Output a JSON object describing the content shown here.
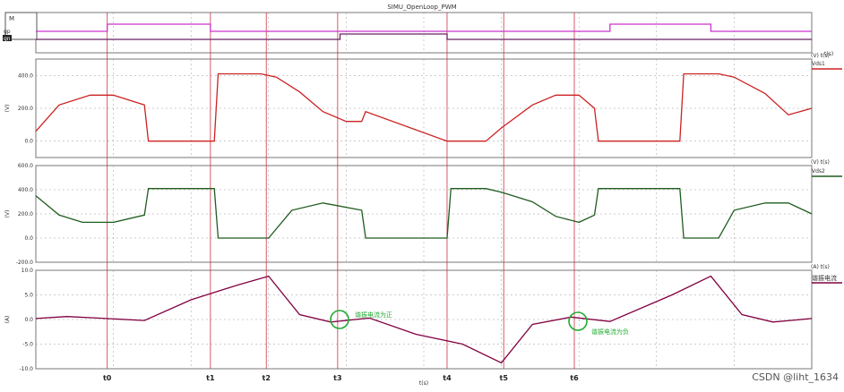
{
  "title": "SIMU_OpenLoop_PWM",
  "watermark": "CSDN @liht_1634",
  "marker_labels": [
    "t0",
    "t1",
    "t2",
    "t3",
    "t4",
    "t5",
    "t6"
  ],
  "x_axis_label": "t(s)",
  "colors": {
    "vds1": "#cc2222",
    "vds2": "#1f5c1f",
    "current": "#800040",
    "gate_high": "#cc33cc",
    "gate_low": "#662266",
    "markers": "#cc3344",
    "annotation": "#22aa33",
    "grid": "#9a9a9a"
  },
  "chart_data": [
    {
      "type": "line",
      "name": "gate",
      "box_label": "M",
      "trace_labels": [
        "gp",
        "gn"
      ],
      "x": [
        0,
        0.15,
        0.25,
        0.35,
        0.45,
        0.55,
        0.65,
        0.75,
        0.85,
        0.95,
        1.0
      ]
    },
    {
      "type": "line",
      "unit_label": "(V)  t(s)",
      "ylabel": "(V)",
      "ylim": [
        -100,
        500
      ],
      "yticks": [
        "400.0",
        "200.0",
        "0.0"
      ],
      "legend": "Vds1",
      "series": [
        {
          "name": "Vds1",
          "x": [
            0,
            0.03,
            0.07,
            0.1,
            0.14,
            0.145,
            0.23,
            0.235,
            0.29,
            0.31,
            0.34,
            0.37,
            0.4,
            0.42,
            0.425,
            0.53,
            0.535,
            0.58,
            0.6,
            0.64,
            0.67,
            0.7,
            0.72,
            0.725,
            0.83,
            0.835,
            0.88,
            0.9,
            0.94,
            0.97,
            1.0
          ],
          "y": [
            60,
            220,
            280,
            280,
            220,
            0,
            0,
            410,
            410,
            390,
            300,
            180,
            120,
            120,
            180,
            0,
            0,
            0,
            80,
            220,
            280,
            280,
            200,
            0,
            0,
            410,
            410,
            390,
            290,
            160,
            200
          ]
        }
      ]
    },
    {
      "type": "line",
      "unit_label": "(V)  t(s)",
      "ylabel": "(V)",
      "ylim": [
        -200,
        600
      ],
      "yticks": [
        "600.0",
        "400.0",
        "200.0",
        "0.0",
        "-200.0"
      ],
      "legend": "Vds2",
      "series": [
        {
          "name": "Vds2",
          "x": [
            0,
            0.03,
            0.06,
            0.1,
            0.14,
            0.145,
            0.23,
            0.235,
            0.26,
            0.3,
            0.33,
            0.37,
            0.42,
            0.425,
            0.53,
            0.535,
            0.58,
            0.6,
            0.64,
            0.67,
            0.7,
            0.72,
            0.725,
            0.83,
            0.835,
            0.88,
            0.9,
            0.94,
            0.97,
            1.0
          ],
          "y": [
            350,
            190,
            130,
            130,
            190,
            410,
            410,
            0,
            0,
            0,
            230,
            290,
            230,
            0,
            0,
            410,
            410,
            380,
            300,
            180,
            130,
            190,
            410,
            410,
            0,
            0,
            230,
            290,
            290,
            200
          ]
        }
      ]
    },
    {
      "type": "line",
      "unit_label": "(A)  t(s)",
      "ylabel": "(A)",
      "ylim": [
        -10,
        10
      ],
      "yticks": [
        "10.0",
        "5.0",
        "0.0",
        "-5.0",
        "-10.0"
      ],
      "legend": "谐振电流",
      "series": [
        {
          "name": "谐振电流",
          "x": [
            0,
            0.04,
            0.08,
            0.14,
            0.2,
            0.26,
            0.3,
            0.34,
            0.38,
            0.43,
            0.49,
            0.55,
            0.6,
            0.64,
            0.69,
            0.74,
            0.82,
            0.87,
            0.91,
            0.95,
            1.0
          ],
          "y": [
            0.2,
            0.6,
            0.3,
            -0.2,
            4,
            7,
            8.8,
            1,
            -0.5,
            0.3,
            -3,
            -5,
            -8.8,
            -1,
            0.5,
            -0.4,
            5,
            8.8,
            1,
            -0.5,
            0.2
          ]
        }
      ],
      "annotations": [
        "谐振电流为正",
        "谐振电流为负"
      ]
    }
  ]
}
